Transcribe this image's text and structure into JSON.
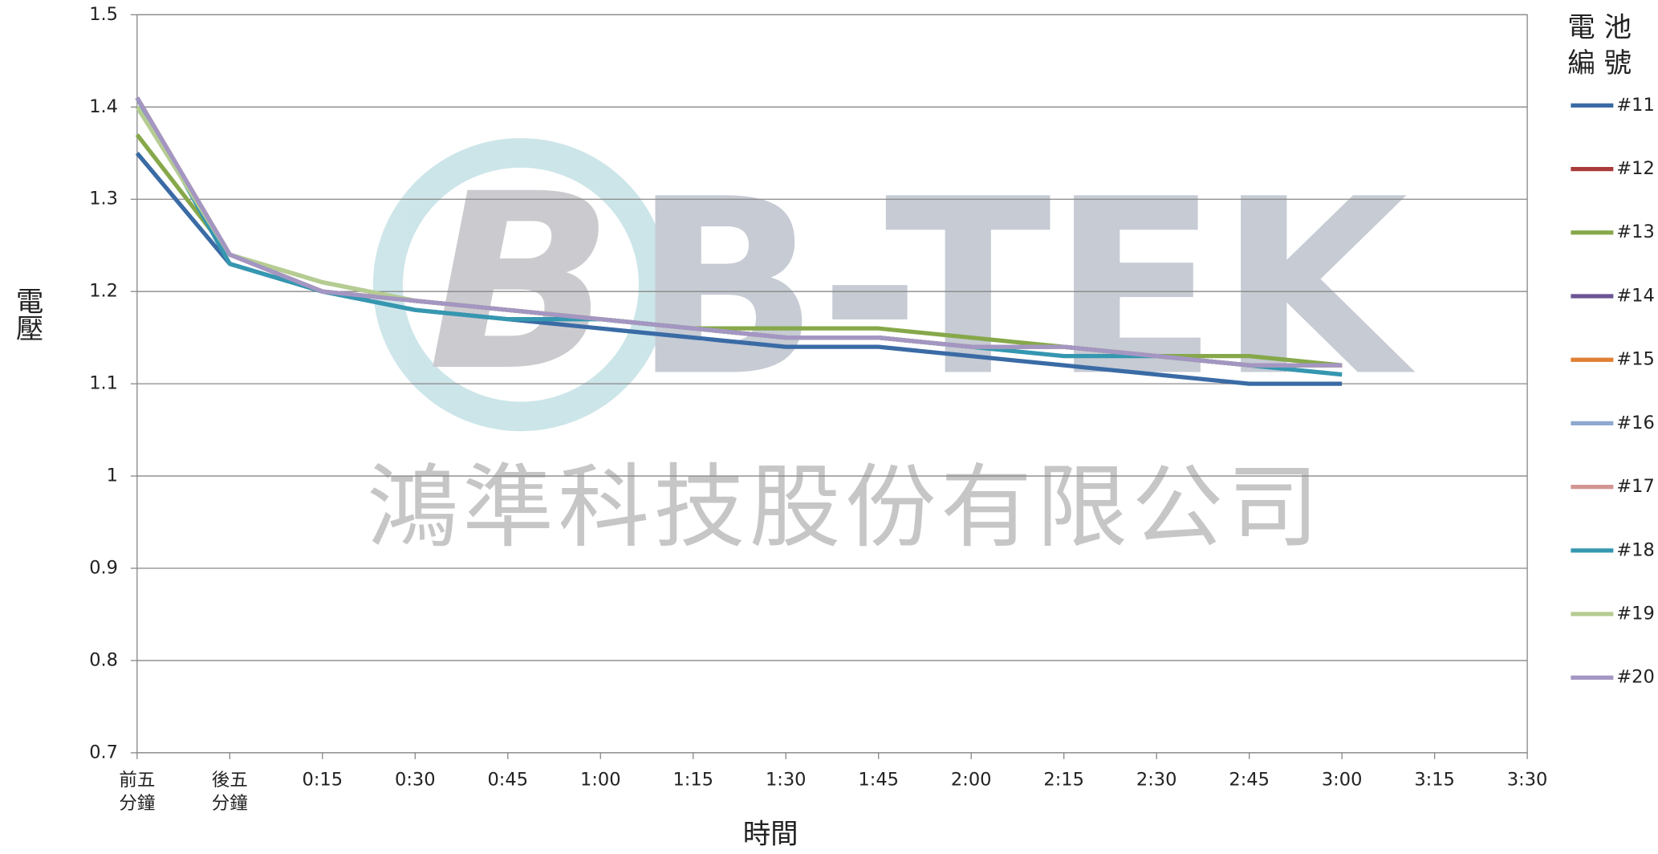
{
  "chart_data": {
    "type": "line",
    "watermark": [
      "B-TEK",
      "鴻準科技股份有限公司"
    ],
    "xlabel": "時間",
    "ylabel": "電壓",
    "legend_title": "電 池\n編 號",
    "categories": [
      "前五\n分鐘",
      "後五\n分鐘",
      "0:15",
      "0:30",
      "0:45",
      "1:00",
      "1:15",
      "1:30",
      "1:45",
      "2:00",
      "2:15",
      "2:30",
      "2:45",
      "3:00",
      "3:15",
      "3:30"
    ],
    "ylim": [
      0.7,
      1.5
    ],
    "yticks": [
      0.7,
      0.8,
      0.9,
      1,
      1.1,
      1.2,
      1.3,
      1.4,
      1.5
    ],
    "grid": true,
    "legend": "right",
    "series": [
      {
        "name": "#11",
        "color": "#3a6ba5",
        "values": [
          1.35,
          1.23,
          1.2,
          1.18,
          1.17,
          1.16,
          1.15,
          1.14,
          1.14,
          1.13,
          1.12,
          1.11,
          1.1,
          1.1,
          null,
          null
        ]
      },
      {
        "name": "#12",
        "color": "#a83c3a",
        "values": [
          1.41,
          1.24,
          1.2,
          1.19,
          1.18,
          1.17,
          1.16,
          1.15,
          1.15,
          1.14,
          1.14,
          1.13,
          1.12,
          1.12,
          null,
          null
        ]
      },
      {
        "name": "#13",
        "color": "#86a84a",
        "values": [
          1.37,
          1.24,
          1.21,
          1.19,
          1.18,
          1.17,
          1.16,
          1.16,
          1.16,
          1.15,
          1.14,
          1.13,
          1.13,
          1.12,
          null,
          null
        ]
      },
      {
        "name": "#14",
        "color": "#6b5594",
        "values": [
          1.41,
          1.24,
          1.2,
          1.19,
          1.18,
          1.17,
          1.16,
          1.15,
          1.15,
          1.14,
          1.14,
          1.13,
          1.12,
          1.12,
          null,
          null
        ]
      },
      {
        "name": "#15",
        "color": "#e07f32",
        "values": [
          1.41,
          1.24,
          1.2,
          1.19,
          1.18,
          1.17,
          1.16,
          1.15,
          1.15,
          1.14,
          1.14,
          1.13,
          1.12,
          1.12,
          null,
          null
        ]
      },
      {
        "name": "#16",
        "color": "#8ea8cf",
        "values": [
          1.41,
          1.24,
          1.2,
          1.19,
          1.18,
          1.17,
          1.16,
          1.15,
          1.15,
          1.14,
          1.14,
          1.13,
          1.12,
          1.11,
          null,
          null
        ]
      },
      {
        "name": "#17",
        "color": "#d29593",
        "values": [
          1.41,
          1.24,
          1.2,
          1.19,
          1.18,
          1.17,
          1.16,
          1.15,
          1.15,
          1.14,
          1.14,
          1.13,
          1.12,
          1.12,
          null,
          null
        ]
      },
      {
        "name": "#18",
        "color": "#3597b0",
        "values": [
          1.41,
          1.23,
          1.2,
          1.18,
          1.17,
          1.17,
          1.16,
          1.15,
          1.15,
          1.14,
          1.13,
          1.13,
          1.12,
          1.11,
          null,
          null
        ]
      },
      {
        "name": "#19",
        "color": "#b5cc92",
        "values": [
          1.4,
          1.24,
          1.21,
          1.19,
          1.18,
          1.17,
          1.16,
          1.15,
          1.15,
          1.14,
          1.14,
          1.13,
          1.12,
          1.12,
          null,
          null
        ]
      },
      {
        "name": "#20",
        "color": "#a496c2",
        "values": [
          1.41,
          1.24,
          1.2,
          1.19,
          1.18,
          1.17,
          1.16,
          1.15,
          1.15,
          1.14,
          1.14,
          1.13,
          1.12,
          1.12,
          null,
          null
        ]
      }
    ]
  }
}
